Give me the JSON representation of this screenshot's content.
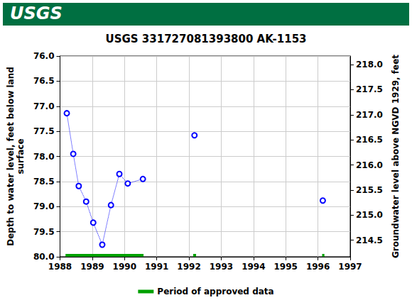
{
  "chart_data": {
    "type": "scatter",
    "banner": "USGS",
    "title": "USGS 331727081393800 AK-1153",
    "y_label": "Depth to water level, feet below land\nsurface",
    "y2_label": "Groundwater level above NGVD 1929, feet",
    "xlim": [
      1988,
      1997
    ],
    "xticks": [
      1988,
      1989,
      1990,
      1991,
      1992,
      1993,
      1994,
      1995,
      1996,
      1997
    ],
    "ylim": [
      80.0,
      76.0
    ],
    "yticks": [
      {
        "value": 76.0,
        "label": "76.0"
      },
      {
        "value": 76.5,
        "label": "76.5"
      },
      {
        "value": 77.0,
        "label": "77.0"
      },
      {
        "value": 77.5,
        "label": "77.5"
      },
      {
        "value": 78.0,
        "label": "78.0"
      },
      {
        "value": 78.5,
        "label": "78.5"
      },
      {
        "value": 79.0,
        "label": "79.0"
      },
      {
        "value": 79.5,
        "label": "79.5"
      },
      {
        "value": 80.0,
        "label": "80.0"
      }
    ],
    "y2lim": [
      214.17,
      218.17
    ],
    "y2ticks": [
      {
        "value": 214.5,
        "label": "214.5"
      },
      {
        "value": 215.0,
        "label": "215.0"
      },
      {
        "value": 215.5,
        "label": "215.5"
      },
      {
        "value": 216.0,
        "label": "216.0"
      },
      {
        "value": 216.5,
        "label": "216.5"
      },
      {
        "value": 217.0,
        "label": "217.0"
      },
      {
        "value": 217.5,
        "label": "217.5"
      },
      {
        "value": 218.0,
        "label": "218.0"
      }
    ],
    "grid": true,
    "legend": "bottom",
    "series": [
      {
        "type": "line",
        "color": "#0000ff",
        "marker": "circle",
        "line_style": "dotted",
        "x": [
          1988.21,
          1988.41,
          1988.58,
          1988.81,
          1989.03,
          1989.31,
          1989.58,
          1989.84,
          1990.1,
          1990.57,
          null,
          1992.17,
          null,
          1996.15
        ],
        "values": [
          77.14,
          77.95,
          78.59,
          78.9,
          79.32,
          79.76,
          78.97,
          78.35,
          78.54,
          78.45,
          null,
          77.58,
          null,
          78.88
        ]
      },
      {
        "type": "period",
        "name": "Period of approved data",
        "color": "#00a000",
        "periods": [
          [
            1988.17,
            1990.59
          ],
          [
            1992.13,
            1992.22
          ],
          [
            1996.13,
            1996.2
          ]
        ]
      }
    ]
  }
}
